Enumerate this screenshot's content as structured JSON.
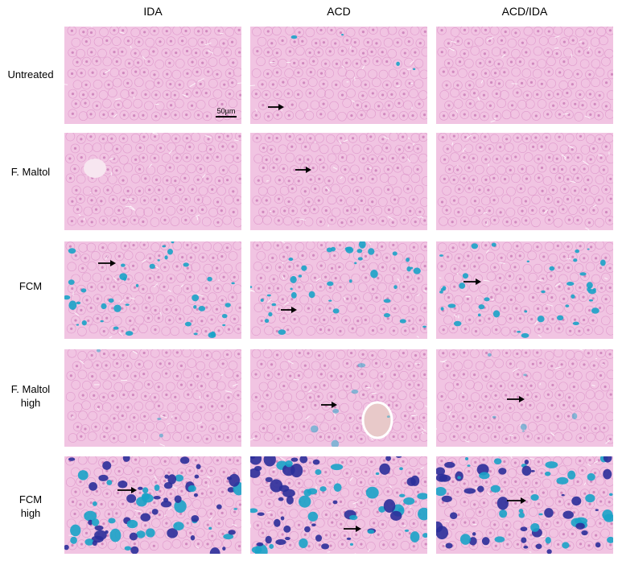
{
  "columns": [
    "IDA",
    "ACD",
    "ACD/IDA"
  ],
  "rows": [
    {
      "label": "Untreated",
      "staining": "none"
    },
    {
      "label": "F. Maltol",
      "staining": "none"
    },
    {
      "label": "FCM",
      "staining": "moderate"
    },
    {
      "label": "F. Maltol\nhigh",
      "staining": "faint"
    },
    {
      "label": "FCM\nhigh",
      "staining": "heavy"
    }
  ],
  "scale_bar_label": "50µm",
  "colors": {
    "tissue_pink": "#f1c4e2",
    "cell_outline": "#d98cc4",
    "nucleus": "#c97bb7",
    "iron_blue": "#1aa3c8",
    "iron_dark": "#2b2f9a",
    "arrow": "#000000"
  }
}
